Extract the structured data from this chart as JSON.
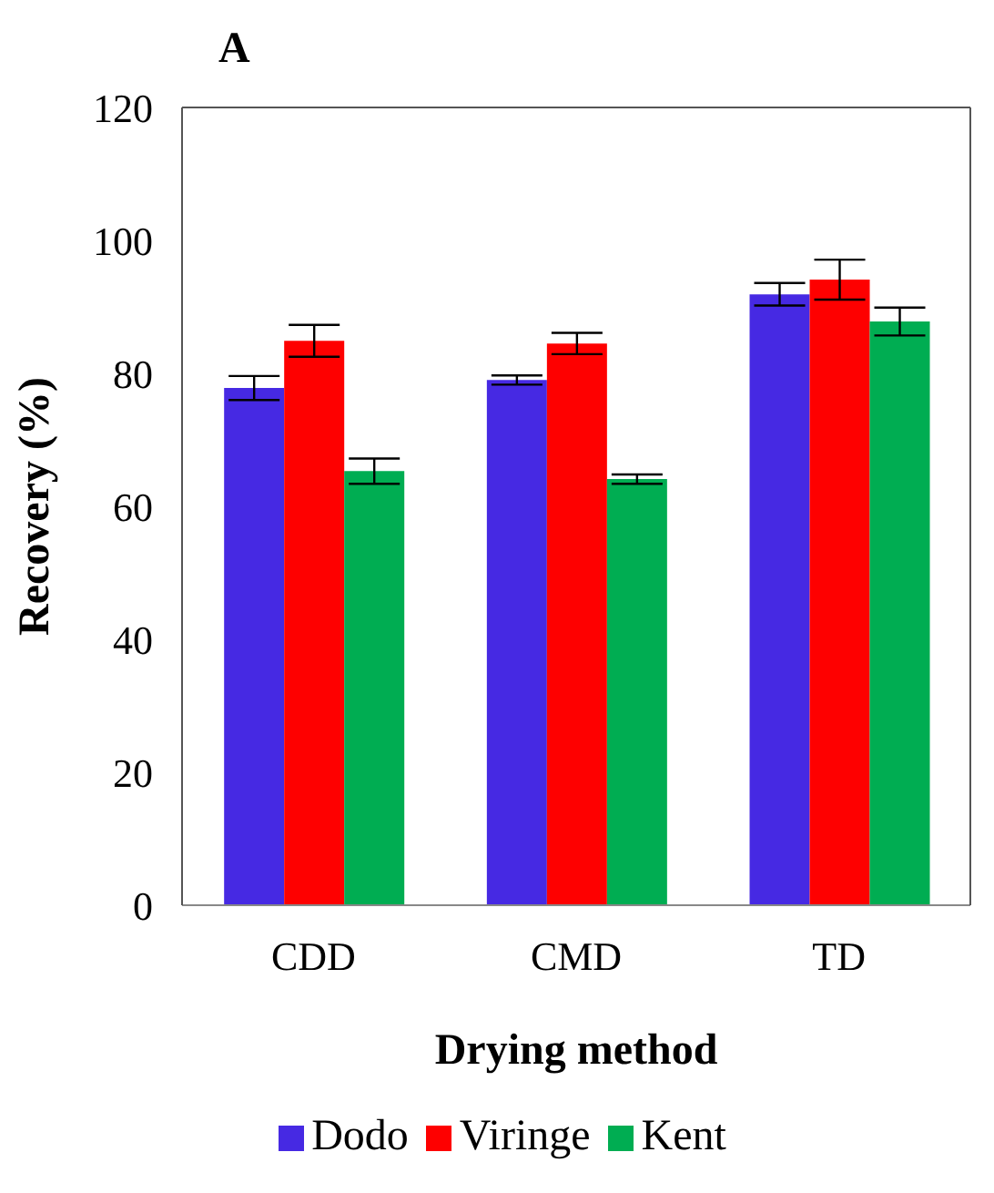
{
  "chart_data": {
    "type": "bar",
    "title": "A",
    "xlabel": "Drying method",
    "ylabel": "Recovery (%)",
    "categories": [
      "CDD",
      "CMD",
      "TD"
    ],
    "series": [
      {
        "name": "Dodo",
        "color": "#4629e3",
        "values": [
          77.8,
          79.0,
          91.9
        ],
        "errors": [
          1.8,
          0.7,
          1.7
        ]
      },
      {
        "name": "Viringe",
        "color": "#fe0000",
        "values": [
          84.9,
          84.5,
          94.1
        ],
        "errors": [
          2.4,
          1.6,
          3.0
        ]
      },
      {
        "name": "Kent",
        "color": "#00ad52",
        "values": [
          65.3,
          64.1,
          87.8
        ],
        "errors": [
          1.9,
          0.7,
          2.1
        ]
      }
    ],
    "ylim": [
      0,
      120
    ],
    "yticks": [
      0,
      20,
      40,
      60,
      80,
      100,
      120
    ],
    "grid": false,
    "legend": "bottom"
  }
}
